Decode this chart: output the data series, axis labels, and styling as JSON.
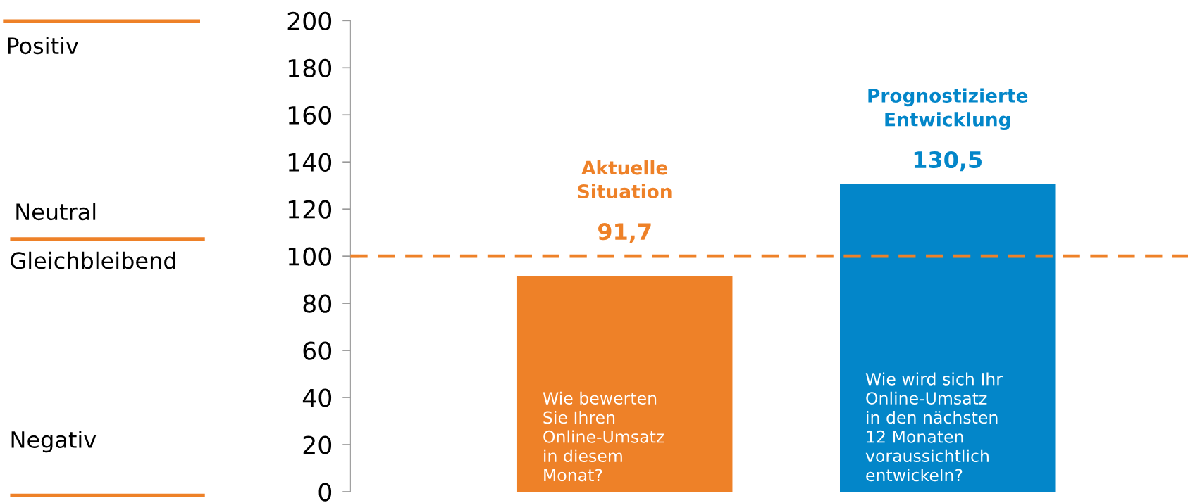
{
  "chart_data": {
    "type": "bar",
    "categories": [
      "Aktuelle\nSituation",
      "Prognostizierte\nEntwicklung"
    ],
    "values": [
      91.7,
      130.5
    ],
    "colors": [
      "#ee8128",
      "#0386c9"
    ],
    "value_labels": [
      "91,7",
      "130,5"
    ],
    "ylim": [
      0,
      200
    ],
    "yticks": [
      0,
      20,
      40,
      60,
      80,
      100,
      120,
      140,
      160,
      180,
      200
    ],
    "grid": false,
    "ref_lines": [
      {
        "axis": "y",
        "value": 100,
        "color": "#ee8128",
        "line_style": "dashed"
      }
    ],
    "annotations": [
      "Positiv",
      "Neutral",
      "Gleichbleibend",
      "Negativ",
      "Wie bewerten\nSie Ihren\nOnline-Umsatz\nin diesem\nMonat?",
      "Wie wird sich Ihr\nOnline-Umsatz\nin den nächsten\n12 Monaten\nvoraussichtlich\nentwickeln?"
    ]
  }
}
